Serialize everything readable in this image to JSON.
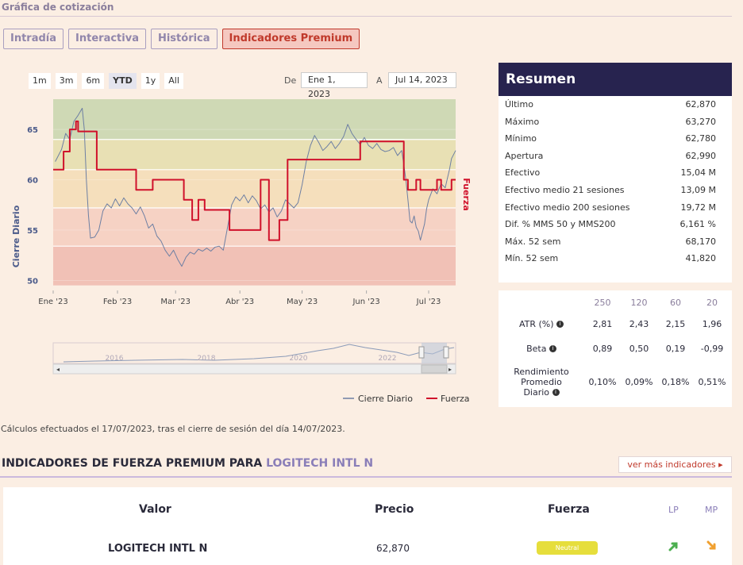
{
  "page": {
    "section_title": "Gráfica de cotización"
  },
  "tabs": [
    {
      "label": "Intradía",
      "active": false
    },
    {
      "label": "Interactiva",
      "active": false
    },
    {
      "label": "Histórica",
      "active": false
    },
    {
      "label": "Indicadores Premium",
      "active": true
    }
  ],
  "range_buttons": [
    "1m",
    "3m",
    "6m",
    "YTD",
    "1y",
    "All"
  ],
  "range_selected": "YTD",
  "date_range": {
    "from_label": "De",
    "from": "Ene 1, 2023",
    "to_label": "A",
    "to": "Jul 14, 2023"
  },
  "chart_data": {
    "type": "line",
    "ylabel": "Cierre Diario",
    "y2label": "Fuerza",
    "ylim": [
      49,
      68
    ],
    "yticks": [
      50,
      55,
      60,
      65
    ],
    "xlim": [
      "2023-01-01",
      "2023-07-14"
    ],
    "xticks": [
      {
        "label": "Ene '23",
        "date": "2023-01-01"
      },
      {
        "label": "Feb '23",
        "date": "2023-02-01"
      },
      {
        "label": "Mar '23",
        "date": "2023-03-01"
      },
      {
        "label": "Abr '23",
        "date": "2023-04-01"
      },
      {
        "label": "May '23",
        "date": "2023-05-01"
      },
      {
        "label": "Jun '23",
        "date": "2023-06-01"
      },
      {
        "label": "Jul '23",
        "date": "2023-07-01"
      }
    ],
    "bands": [
      {
        "from": 64,
        "to": 68,
        "color": "#cfd9b5"
      },
      {
        "from": 61,
        "to": 64,
        "color": "#e8e0b4"
      },
      {
        "from": 57.2,
        "to": 61,
        "color": "#f5dfbc"
      },
      {
        "from": 53.4,
        "to": 57.2,
        "color": "#f6d2c4"
      },
      {
        "from": 49.5,
        "to": 53.4,
        "color": "#f1c1b6"
      }
    ],
    "grid": true,
    "legend_position": "bottom-right",
    "series": [
      {
        "name": "Cierre Diario",
        "color": "#6d7fa3",
        "points": [
          [
            "2023-01-02",
            61.8
          ],
          [
            "2023-01-03",
            62.2
          ],
          [
            "2023-01-05",
            63.0
          ],
          [
            "2023-01-07",
            64.6
          ],
          [
            "2023-01-09",
            64.0
          ],
          [
            "2023-01-11",
            65.8
          ],
          [
            "2023-01-13",
            66.4
          ],
          [
            "2023-01-15",
            67.1
          ],
          [
            "2023-01-16",
            65.0
          ],
          [
            "2023-01-17",
            60.0
          ],
          [
            "2023-01-18",
            56.5
          ],
          [
            "2023-01-19",
            54.2
          ],
          [
            "2023-01-21",
            54.3
          ],
          [
            "2023-01-23",
            55.0
          ],
          [
            "2023-01-25",
            56.9
          ],
          [
            "2023-01-27",
            57.6
          ],
          [
            "2023-01-29",
            57.2
          ],
          [
            "2023-01-31",
            58.1
          ],
          [
            "2023-02-02",
            57.4
          ],
          [
            "2023-02-04",
            58.2
          ],
          [
            "2023-02-06",
            57.6
          ],
          [
            "2023-02-08",
            57.2
          ],
          [
            "2023-02-10",
            56.6
          ],
          [
            "2023-02-12",
            57.3
          ],
          [
            "2023-02-14",
            56.4
          ],
          [
            "2023-02-16",
            55.2
          ],
          [
            "2023-02-18",
            55.6
          ],
          [
            "2023-02-20",
            54.4
          ],
          [
            "2023-02-22",
            53.9
          ],
          [
            "2023-02-24",
            53.0
          ],
          [
            "2023-02-26",
            52.4
          ],
          [
            "2023-02-28",
            53.0
          ],
          [
            "2023-03-02",
            52.1
          ],
          [
            "2023-03-04",
            51.4
          ],
          [
            "2023-03-06",
            52.3
          ],
          [
            "2023-03-08",
            52.8
          ],
          [
            "2023-03-10",
            52.6
          ],
          [
            "2023-03-12",
            53.1
          ],
          [
            "2023-03-14",
            52.9
          ],
          [
            "2023-03-16",
            53.2
          ],
          [
            "2023-03-18",
            52.9
          ],
          [
            "2023-03-20",
            53.3
          ],
          [
            "2023-03-22",
            53.4
          ],
          [
            "2023-03-24",
            53.0
          ],
          [
            "2023-03-26",
            55.2
          ],
          [
            "2023-03-28",
            57.5
          ],
          [
            "2023-03-30",
            58.3
          ],
          [
            "2023-04-01",
            57.9
          ],
          [
            "2023-04-03",
            58.5
          ],
          [
            "2023-04-05",
            57.7
          ],
          [
            "2023-04-07",
            58.4
          ],
          [
            "2023-04-09",
            57.9
          ],
          [
            "2023-04-11",
            57.1
          ],
          [
            "2023-04-13",
            57.5
          ],
          [
            "2023-04-15",
            56.8
          ],
          [
            "2023-04-17",
            57.2
          ],
          [
            "2023-04-19",
            56.3
          ],
          [
            "2023-04-21",
            56.9
          ],
          [
            "2023-04-23",
            58.0
          ],
          [
            "2023-04-25",
            57.6
          ],
          [
            "2023-04-27",
            57.2
          ],
          [
            "2023-04-29",
            57.7
          ],
          [
            "2023-05-01",
            59.5
          ],
          [
            "2023-05-03",
            61.8
          ],
          [
            "2023-05-05",
            63.4
          ],
          [
            "2023-05-07",
            64.4
          ],
          [
            "2023-05-09",
            63.7
          ],
          [
            "2023-05-11",
            62.9
          ],
          [
            "2023-05-13",
            63.3
          ],
          [
            "2023-05-15",
            63.8
          ],
          [
            "2023-05-17",
            63.1
          ],
          [
            "2023-05-19",
            63.6
          ],
          [
            "2023-05-21",
            64.3
          ],
          [
            "2023-05-23",
            65.5
          ],
          [
            "2023-05-25",
            64.6
          ],
          [
            "2023-05-27",
            64.0
          ],
          [
            "2023-05-29",
            63.5
          ],
          [
            "2023-05-31",
            64.2
          ],
          [
            "2023-06-02",
            63.4
          ],
          [
            "2023-06-04",
            63.1
          ],
          [
            "2023-06-06",
            63.6
          ],
          [
            "2023-06-08",
            63.0
          ],
          [
            "2023-06-10",
            62.8
          ],
          [
            "2023-06-12",
            62.9
          ],
          [
            "2023-06-14",
            63.2
          ],
          [
            "2023-06-16",
            62.4
          ],
          [
            "2023-06-18",
            62.9
          ],
          [
            "2023-06-19",
            61.5
          ],
          [
            "2023-06-20",
            60.0
          ],
          [
            "2023-06-21",
            58.0
          ],
          [
            "2023-06-22",
            55.9
          ],
          [
            "2023-06-23",
            55.7
          ],
          [
            "2023-06-24",
            56.4
          ],
          [
            "2023-06-25",
            55.3
          ],
          [
            "2023-06-26",
            54.9
          ],
          [
            "2023-06-27",
            54.0
          ],
          [
            "2023-06-28",
            54.8
          ],
          [
            "2023-06-29",
            55.6
          ],
          [
            "2023-06-30",
            57.1
          ],
          [
            "2023-07-01",
            58.0
          ],
          [
            "2023-07-03",
            59.1
          ],
          [
            "2023-07-05",
            58.6
          ],
          [
            "2023-07-07",
            59.6
          ],
          [
            "2023-07-09",
            59.2
          ],
          [
            "2023-07-10",
            60.1
          ],
          [
            "2023-07-11",
            61.0
          ],
          [
            "2023-07-12",
            62.1
          ],
          [
            "2023-07-13",
            62.5
          ],
          [
            "2023-07-14",
            62.9
          ]
        ]
      },
      {
        "name": "Fuerza",
        "color": "#d0112b",
        "points": [
          [
            "2023-01-01",
            61.0
          ],
          [
            "2023-01-06",
            61.0
          ],
          [
            "2023-01-06",
            62.8
          ],
          [
            "2023-01-09",
            62.8
          ],
          [
            "2023-01-09",
            65.0
          ],
          [
            "2023-01-12",
            65.0
          ],
          [
            "2023-01-12",
            65.8
          ],
          [
            "2023-01-13",
            65.8
          ],
          [
            "2023-01-13",
            64.8
          ],
          [
            "2023-01-22",
            64.8
          ],
          [
            "2023-01-22",
            61.0
          ],
          [
            "2023-02-10",
            61.0
          ],
          [
            "2023-02-10",
            59.0
          ],
          [
            "2023-02-18",
            59.0
          ],
          [
            "2023-02-18",
            60.0
          ],
          [
            "2023-03-05",
            60.0
          ],
          [
            "2023-03-05",
            58.0
          ],
          [
            "2023-03-09",
            58.0
          ],
          [
            "2023-03-09",
            56.0
          ],
          [
            "2023-03-12",
            56.0
          ],
          [
            "2023-03-12",
            58.0
          ],
          [
            "2023-03-15",
            58.0
          ],
          [
            "2023-03-15",
            57.0
          ],
          [
            "2023-03-27",
            57.0
          ],
          [
            "2023-03-27",
            55.0
          ],
          [
            "2023-04-11",
            55.0
          ],
          [
            "2023-04-11",
            60.0
          ],
          [
            "2023-04-15",
            60.0
          ],
          [
            "2023-04-15",
            54.0
          ],
          [
            "2023-04-20",
            54.0
          ],
          [
            "2023-04-20",
            56.0
          ],
          [
            "2023-04-24",
            56.0
          ],
          [
            "2023-04-24",
            62.0
          ],
          [
            "2023-05-29",
            62.0
          ],
          [
            "2023-05-29",
            63.8
          ],
          [
            "2023-06-19",
            63.8
          ],
          [
            "2023-06-19",
            60.0
          ],
          [
            "2023-06-21",
            60.0
          ],
          [
            "2023-06-21",
            59.0
          ],
          [
            "2023-06-25",
            59.0
          ],
          [
            "2023-06-25",
            60.0
          ],
          [
            "2023-06-27",
            60.0
          ],
          [
            "2023-06-27",
            59.0
          ],
          [
            "2023-07-05",
            59.0
          ],
          [
            "2023-07-05",
            60.0
          ],
          [
            "2023-07-07",
            60.0
          ],
          [
            "2023-07-07",
            59.0
          ],
          [
            "2023-07-12",
            59.0
          ],
          [
            "2023-07-12",
            60.0
          ],
          [
            "2023-07-14",
            60.0
          ]
        ]
      }
    ],
    "navigator": {
      "labels": [
        "2016",
        "2018",
        "2020",
        "2022"
      ]
    }
  },
  "summary": {
    "title": "Resumen",
    "rows": [
      {
        "label": "Último",
        "value": "62,870"
      },
      {
        "label": "Máximo",
        "value": "63,270"
      },
      {
        "label": "Mínimo",
        "value": "62,780"
      },
      {
        "label": "Apertura",
        "value": "62,990"
      },
      {
        "label": "Efectivo",
        "value": "15,04 M"
      },
      {
        "label": "Efectivo medio 21 sesiones",
        "value": "13,09 M"
      },
      {
        "label": "Efectivo medio 200 sesiones",
        "value": "19,72 M"
      },
      {
        "label": "Dif. % MMS 50 y MMS200",
        "value": "6,161 %"
      },
      {
        "label": "Máx. 52 sem",
        "value": "68,170"
      },
      {
        "label": "Mín. 52 sem",
        "value": "41,820"
      }
    ]
  },
  "periods": {
    "headers": [
      "250",
      "120",
      "60",
      "20"
    ],
    "rows": [
      {
        "label": "ATR (%)",
        "values": [
          "2,81",
          "2,43",
          "2,15",
          "1,96"
        ]
      },
      {
        "label": "Beta",
        "values": [
          "0,89",
          "0,50",
          "0,19",
          "-0,99"
        ]
      },
      {
        "label": "Rendimiento Promedio Diario",
        "values": [
          "0,10%",
          "0,09%",
          "0,18%",
          "0,51%"
        ]
      }
    ]
  },
  "calc_note": "Cálculos efectuados el 17/07/2023, tras el cierre de sesión del día 14/07/2023.",
  "indicators": {
    "title_prefix": "INDICADORES DE FUERZA PREMIUM PARA",
    "company": "LOGITECH INTL N",
    "more_button": "ver más indicadores",
    "headers": {
      "valor": "Valor",
      "precio": "Precio",
      "fuerza": "Fuerza",
      "lp": "LP",
      "mp": "MP"
    },
    "row": {
      "valor": "LOGITECH INTL N",
      "precio": "62,870",
      "fuerza": "Neutral"
    },
    "lp_arrow_color": "#4caf50",
    "mp_arrow_color": "#f0a030"
  }
}
